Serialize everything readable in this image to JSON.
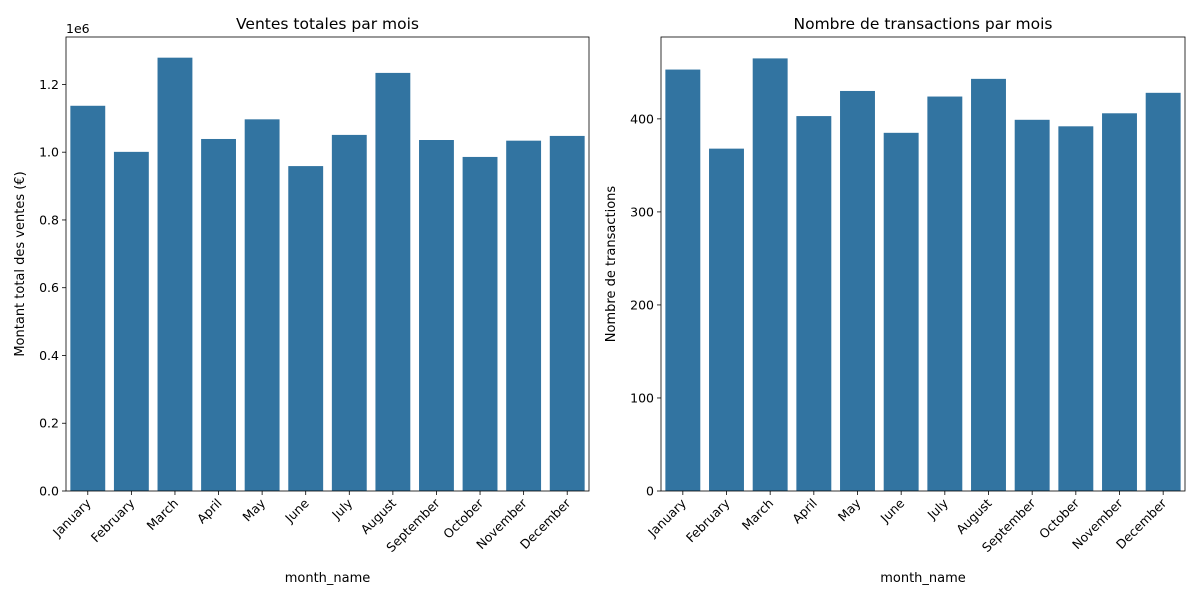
{
  "chart_data": [
    {
      "type": "bar",
      "title": "Ventes totales par mois",
      "xlabel": "month_name",
      "ylabel": "Montant total des ventes (€)",
      "scale_note": "1e6",
      "categories": [
        "January",
        "February",
        "March",
        "April",
        "May",
        "June",
        "July",
        "August",
        "September",
        "October",
        "November",
        "December"
      ],
      "values": [
        1137000,
        1001000,
        1279000,
        1039000,
        1097000,
        959000,
        1051000,
        1234000,
        1036000,
        986000,
        1034000,
        1048000
      ],
      "ylim": [
        0,
        1340000
      ],
      "yticks": [
        0,
        200000,
        400000,
        600000,
        800000,
        1000000,
        1200000
      ],
      "ytick_labels": [
        "0.0",
        "0.2",
        "0.4",
        "0.6",
        "0.8",
        "1.0",
        "1.2"
      ],
      "bar_color": "#3274a1",
      "grid": false
    },
    {
      "type": "bar",
      "title": "Nombre de transactions par mois",
      "xlabel": "month_name",
      "ylabel": "Nombre de transactions",
      "categories": [
        "January",
        "February",
        "March",
        "April",
        "May",
        "June",
        "July",
        "August",
        "September",
        "October",
        "November",
        "December"
      ],
      "values": [
        453,
        368,
        465,
        403,
        430,
        385,
        424,
        443,
        399,
        392,
        406,
        428
      ],
      "ylim": [
        0,
        488
      ],
      "yticks": [
        0,
        100,
        200,
        300,
        400
      ],
      "ytick_labels": [
        "0",
        "100",
        "200",
        "300",
        "400"
      ],
      "bar_color": "#3274a1",
      "grid": false
    }
  ]
}
